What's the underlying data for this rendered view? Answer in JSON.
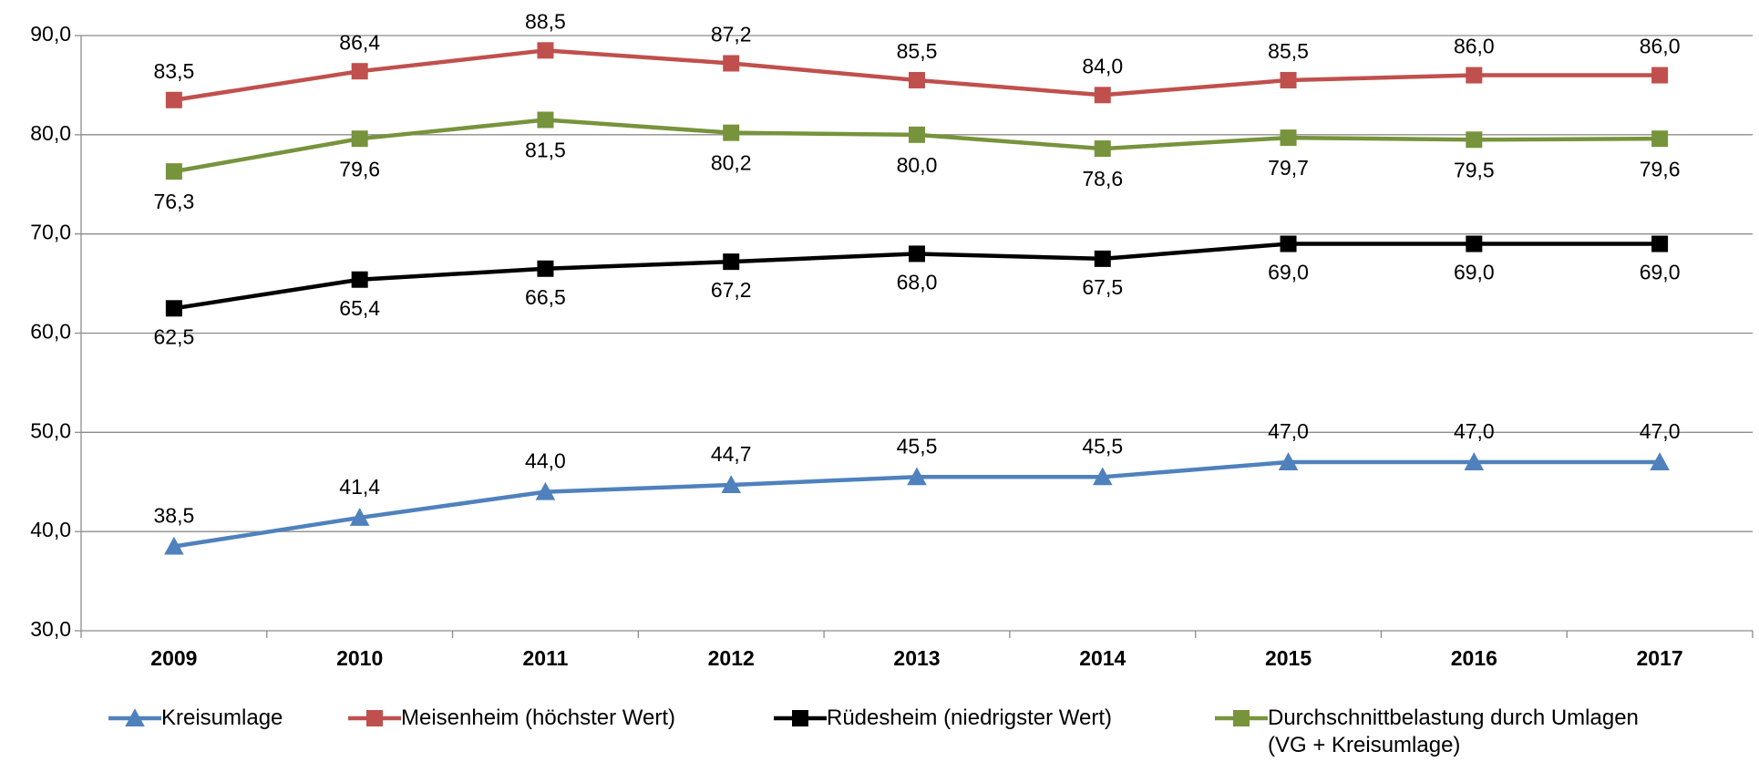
{
  "chart_data": {
    "type": "line",
    "categories": [
      "2009",
      "2010",
      "2011",
      "2012",
      "2013",
      "2014",
      "2015",
      "2016",
      "2017"
    ],
    "ylim": [
      30,
      90
    ],
    "yticks": [
      {
        "value": 30,
        "label": "30,0"
      },
      {
        "value": 40,
        "label": "40,0"
      },
      {
        "value": 50,
        "label": "50,0"
      },
      {
        "value": 60,
        "label": "60,0"
      },
      {
        "value": 70,
        "label": "70,0"
      },
      {
        "value": 80,
        "label": "80,0"
      },
      {
        "value": 90,
        "label": "90,0"
      }
    ],
    "grid": true,
    "legend": "bottom",
    "series": [
      {
        "name": "Kreisumlage",
        "color": "#4f81bd",
        "marker": "triangle",
        "values": [
          38.5,
          41.4,
          44.0,
          44.7,
          45.5,
          45.5,
          47.0,
          47.0,
          47.0
        ],
        "value_labels": [
          "38,5",
          "41,4",
          "44,0",
          "44,7",
          "45,5",
          "45,5",
          "47,0",
          "47,0",
          "47,0"
        ]
      },
      {
        "name": "Meisenheim (höchster Wert)",
        "color": "#c0504d",
        "marker": "square",
        "values": [
          83.5,
          86.4,
          88.5,
          87.2,
          85.5,
          84.0,
          85.5,
          86.0,
          86.0
        ],
        "value_labels": [
          "83,5",
          "86,4",
          "88,5",
          "87,2",
          "85,5",
          "84,0",
          "85,5",
          "86,0",
          "86,0"
        ]
      },
      {
        "name": "Rüdesheim (niedrigster Wert)",
        "color": "#000000",
        "marker": "square",
        "values": [
          62.5,
          65.4,
          66.5,
          67.2,
          68.0,
          67.5,
          69.0,
          69.0,
          69.0
        ],
        "value_labels": [
          "62,5",
          "65,4",
          "66,5",
          "67,2",
          "68,0",
          "67,5",
          "69,0",
          "69,0",
          "69,0"
        ]
      },
      {
        "name": "Durchschnittbelastung durch Umlagen (VG + Kreisumlage)",
        "color": "#77933c",
        "marker": "square",
        "values": [
          76.3,
          79.6,
          81.5,
          80.2,
          80.0,
          78.6,
          79.7,
          79.5,
          79.6
        ],
        "value_labels": [
          "76,3",
          "79,6",
          "81,5",
          "80,2",
          "80,0",
          "78,6",
          "79,7",
          "79,5",
          "79,6"
        ]
      }
    ]
  }
}
